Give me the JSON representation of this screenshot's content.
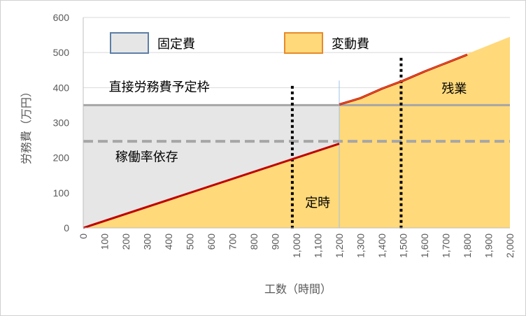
{
  "chart_data": {
    "type": "area",
    "xlabel": "工数（時間）",
    "ylabel": "労務費（万円）",
    "xlim": [
      0,
      2000
    ],
    "ylim": [
      0,
      600
    ],
    "x_ticks": [
      "0",
      "100",
      "200",
      "300",
      "400",
      "500",
      "600",
      "700",
      "800",
      "900",
      "1,000",
      "1,100",
      "1,200",
      "1,300",
      "1,400",
      "1,500",
      "1,600",
      "1,700",
      "1,800",
      "1,900",
      "2,000"
    ],
    "y_ticks": [
      "0",
      "100",
      "200",
      "300",
      "400",
      "500",
      "600"
    ],
    "grid": "horizontal",
    "legend": [
      {
        "name": "固定費",
        "color": "#e7e6e6",
        "border": "#5b7fa6"
      },
      {
        "name": "変動費",
        "color": "#ffd97a",
        "border": "#e7892b"
      }
    ],
    "fixed_cost": {
      "x": [
        0,
        2000
      ],
      "y": 350,
      "color": "#e7e6e6"
    },
    "variable_cost": {
      "regular": {
        "x": [
          0,
          1200
        ],
        "y": [
          0,
          240
        ]
      },
      "overtime": {
        "x": [
          1200,
          2000
        ],
        "y": [
          350,
          545
        ]
      },
      "color": "#ffd97a"
    },
    "cost_line": {
      "points": [
        [
          0,
          0
        ],
        [
          1200,
          240
        ]
      ],
      "overtime_points": [
        [
          1200,
          352
        ],
        [
          1300,
          370
        ],
        [
          1400,
          397
        ],
        [
          1500,
          420
        ],
        [
          1600,
          446
        ],
        [
          1700,
          470
        ],
        [
          1800,
          494
        ]
      ],
      "color": "#c00000"
    },
    "reference_lines": [
      {
        "label": "直接労務費予定枠",
        "y": 350,
        "style": "solid",
        "color": "#a6a6a6"
      },
      {
        "label": "稼働率依存",
        "y": 247,
        "style": "dashed",
        "color": "#a6a6a6"
      }
    ],
    "vertical_markers": [
      {
        "x": 980,
        "style": "dotted",
        "color": "#000000",
        "y_top": 405
      },
      {
        "x": 1200,
        "style": "solid",
        "color": "#9dc3e6",
        "y_top": 420
      },
      {
        "x": 1490,
        "style": "dotted",
        "color": "#000000",
        "y_top": 485
      }
    ],
    "annotations": [
      {
        "text": "直接労務費予定枠",
        "x": 120,
        "y": 390
      },
      {
        "text": "稼働率依存",
        "x": 150,
        "y": 190
      },
      {
        "text": "定時",
        "x": 1040,
        "y": 60
      },
      {
        "text": "残業",
        "x": 1680,
        "y": 385
      }
    ]
  }
}
